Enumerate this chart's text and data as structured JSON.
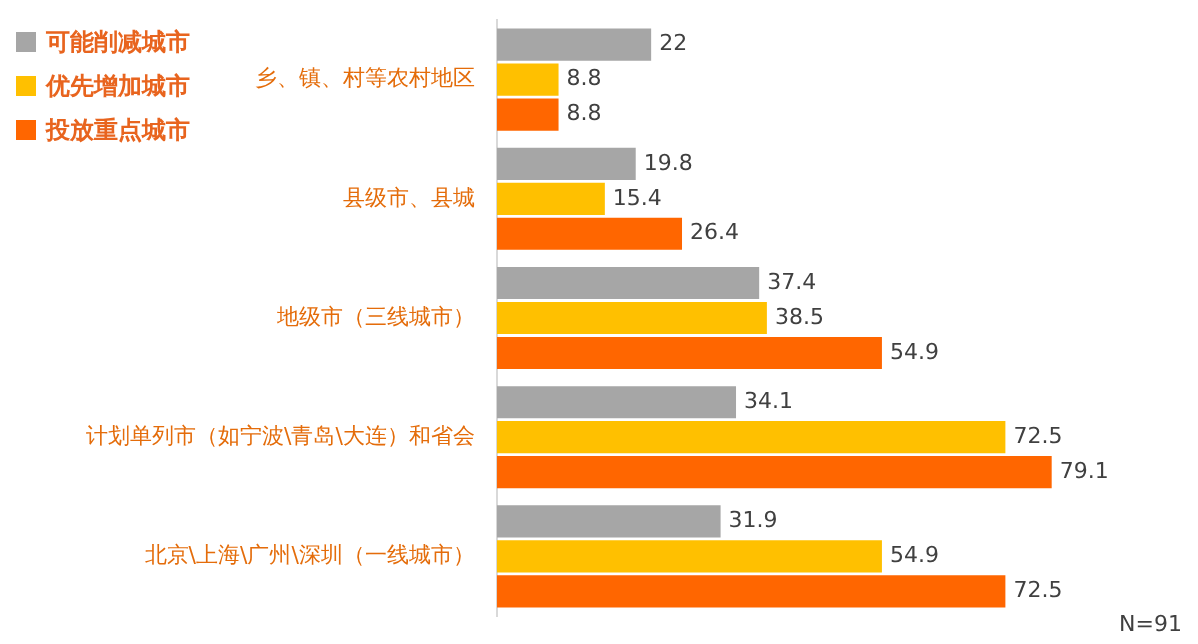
{
  "chart_data": {
    "type": "bar",
    "orientation": "horizontal",
    "categories": [
      "乡、镇、村等农村地区",
      "县级市、县城",
      "地级市（三线城市）",
      "计划单列市（如宁波\\青岛\\大连）和省会",
      "北京\\上海\\广州\\深圳（一线城市）"
    ],
    "series": [
      {
        "name": "可能削减城市",
        "color": "#a6a6a6",
        "values": [
          22,
          19.8,
          37.4,
          34.1,
          31.9
        ]
      },
      {
        "name": "优先增加城市",
        "color": "#ffc000",
        "values": [
          8.8,
          15.4,
          38.5,
          72.5,
          54.9
        ]
      },
      {
        "name": "投放重点城市",
        "color": "#ff6600",
        "values": [
          8.8,
          26.4,
          54.9,
          79.1,
          72.5
        ]
      }
    ],
    "data_labels": true,
    "legend": "top left",
    "tick_labels": "y",
    "annotations": [
      "N=91"
    ]
  }
}
